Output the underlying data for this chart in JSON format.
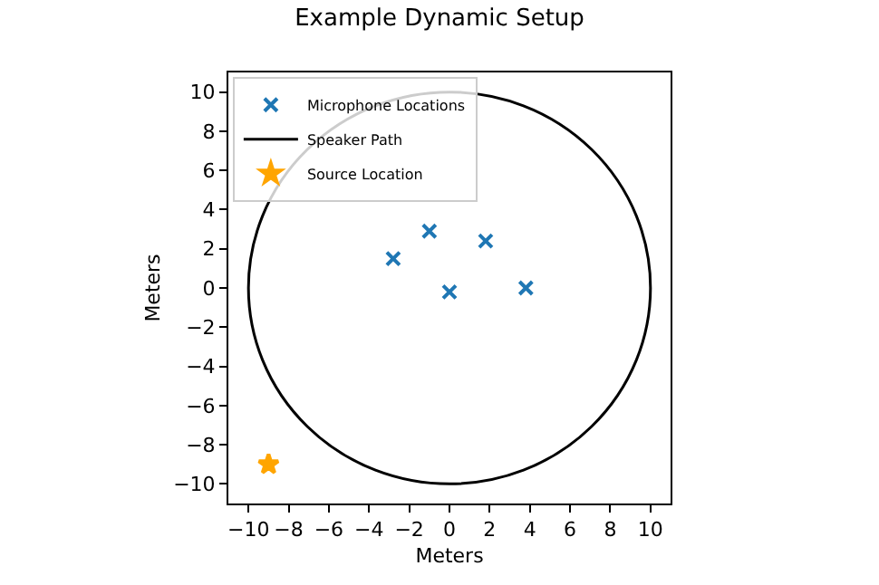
{
  "chart_data": {
    "type": "scatter",
    "title": "Example Dynamic Setup",
    "xlabel": "Meters",
    "ylabel": "Meters",
    "xlim": [
      -11,
      11
    ],
    "ylim": [
      -11,
      11
    ],
    "xticks": [
      -10,
      -8,
      -6,
      -4,
      -2,
      0,
      2,
      4,
      6,
      8,
      10
    ],
    "yticks": [
      -10,
      -8,
      -6,
      -4,
      -2,
      0,
      2,
      4,
      6,
      8,
      10
    ],
    "grid": false,
    "legend": "top left",
    "series": [
      {
        "name": "Microphone Locations",
        "marker": "cross",
        "color": "#1f77b4",
        "x": [
          -2.8,
          -1.0,
          1.8,
          0.0,
          3.8
        ],
        "values": [
          1.5,
          2.9,
          2.4,
          -0.2,
          0.0
        ]
      },
      {
        "name": "Speaker Path",
        "type": "line",
        "line_style": "solid",
        "color": "#000000"
      },
      {
        "name": "Source Location",
        "marker": "star",
        "color": "#ffa500",
        "x": [
          -9.0
        ],
        "values": [
          -9.0
        ]
      }
    ]
  }
}
